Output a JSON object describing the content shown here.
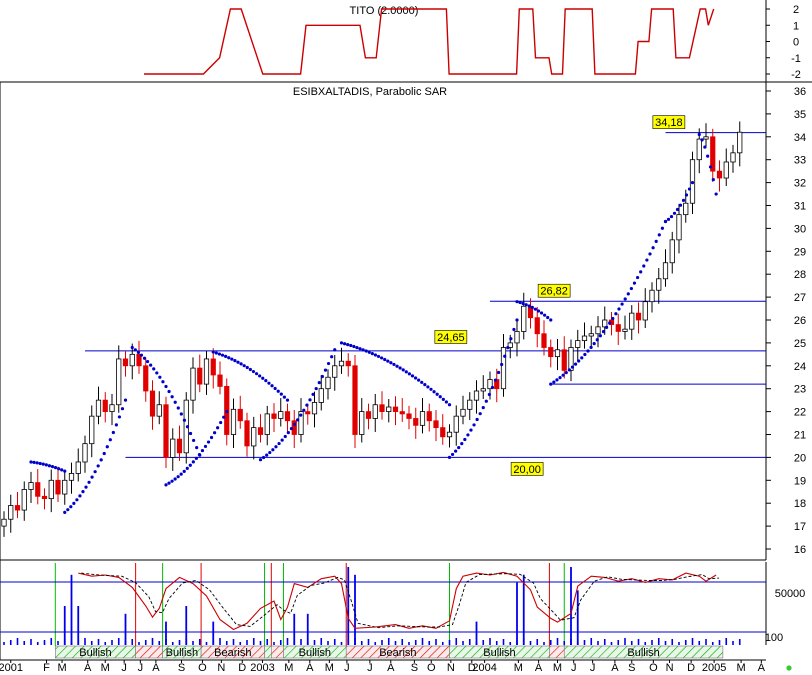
{
  "indicator_title": "TITO (2.0000)",
  "main_title": "ESIBXALTADIS, Parabolic SAR",
  "colors": {
    "price_up": "#000000",
    "price_down": "#e00000",
    "sar": "#0000cc",
    "hline": "#0000cc",
    "tito": "#cc0000",
    "label_bg": "#ffff00",
    "bull": "#00bb00",
    "bear": "#e00000",
    "volume": "#0000ee"
  },
  "chart_data": [
    {
      "type": "line",
      "name": "tito",
      "title": "TITO (2.0000)",
      "ylim": [
        -2.2,
        2.2
      ],
      "y_ticks": [
        "2",
        "1",
        "0",
        "-1",
        "-2"
      ],
      "x": [
        0,
        11,
        14,
        16,
        18,
        21,
        22,
        29,
        30,
        40,
        41,
        43,
        44,
        56,
        56.5,
        58,
        58.5,
        69,
        69.5,
        70.2,
        72,
        72.5,
        75,
        75.5,
        77.5,
        78,
        83,
        83.5,
        91,
        91.5,
        93.5,
        94,
        98,
        98.5,
        101,
        103,
        104,
        104.5,
        105.5
      ],
      "y": [
        -2,
        -2,
        -1,
        2,
        2,
        -1,
        -2,
        -2,
        1,
        1,
        -1,
        -1,
        2,
        2,
        -2,
        -2,
        -2,
        -2,
        2,
        2,
        2,
        -1,
        -1,
        -2,
        -2,
        2,
        2,
        -2,
        -2,
        0,
        0,
        2,
        2,
        -1,
        -1,
        2,
        2,
        1,
        2
      ]
    },
    {
      "type": "candlestick",
      "name": "price",
      "title": "ESIBXALTADIS, Parabolic SAR",
      "ylim": [
        16.6,
        36.4
      ],
      "y_ticks": [
        "36",
        "35",
        "34",
        "33",
        "32",
        "31",
        "30",
        "29",
        "28",
        "27",
        "26",
        "25",
        "24",
        "23",
        "22",
        "21",
        "20",
        "19",
        "18",
        "17",
        "16"
      ],
      "x_ticks": [
        {
          "label": "2001",
          "x": 1
        },
        {
          "label": "F",
          "x": 6.3
        },
        {
          "label": "M",
          "x": 8.6
        },
        {
          "label": "A",
          "x": 12.4
        },
        {
          "label": "M",
          "x": 15
        },
        {
          "label": "J",
          "x": 17.8
        },
        {
          "label": "J",
          "x": 20.2
        },
        {
          "label": "A",
          "x": 22.5
        },
        {
          "label": "S",
          "x": 26.3
        },
        {
          "label": "O",
          "x": 29.4
        },
        {
          "label": "N",
          "x": 32.2
        },
        {
          "label": "D",
          "x": 35.3
        },
        {
          "label": "2003",
          "x": 38.3
        },
        {
          "label": "M",
          "x": 42.2
        },
        {
          "label": "A",
          "x": 45.3
        },
        {
          "label": "M",
          "x": 48.2
        },
        {
          "label": "J",
          "x": 50.8
        },
        {
          "label": "J",
          "x": 54.2
        },
        {
          "label": "A",
          "x": 57.3
        },
        {
          "label": "S",
          "x": 60.8
        },
        {
          "label": "O",
          "x": 63.3
        },
        {
          "label": "N",
          "x": 66.2
        },
        {
          "label": "D",
          "x": 69.3
        },
        {
          "label": "2004",
          "x": 71.2
        },
        {
          "label": "M",
          "x": 76.2
        },
        {
          "label": "A",
          "x": 79.2
        },
        {
          "label": "M",
          "x": 82
        },
        {
          "label": "J",
          "x": 84.4
        },
        {
          "label": "J",
          "x": 87.2
        },
        {
          "label": "A",
          "x": 90.5
        },
        {
          "label": "S",
          "x": 93
        },
        {
          "label": "O",
          "x": 96.2
        },
        {
          "label": "N",
          "x": 98.6
        },
        {
          "label": "D",
          "x": 101.8
        },
        {
          "label": "2005",
          "x": 105.2
        },
        {
          "label": "M",
          "x": 109.2
        },
        {
          "label": "A",
          "x": 112.2
        }
      ],
      "close": [
        17.3,
        17.9,
        17.7,
        18.6,
        18.9,
        18.3,
        18.2,
        19.0,
        18.4,
        19.0,
        19.3,
        19.8,
        20.6,
        21.8,
        22.5,
        22.0,
        22.3,
        24.3,
        24.0,
        24.5,
        24.0,
        22.9,
        21.8,
        22.3,
        20.0,
        20.8,
        20.2,
        22.5,
        23.9,
        23.2,
        24.3,
        23.6,
        23.1,
        21.0,
        22.1,
        21.6,
        20.5,
        21.3,
        21.0,
        21.9,
        21.7,
        22.0,
        21.6,
        21.0,
        22.0,
        21.9,
        22.4,
        23.0,
        23.5,
        24.0,
        24.2,
        24.0,
        21.0,
        22.0,
        21.7,
        22.3,
        22.0,
        22.2,
        22.0,
        21.9,
        21.7,
        21.4,
        22.0,
        21.6,
        21.3,
        20.9,
        21.1,
        21.8,
        22.1,
        22.5,
        22.9,
        23.0,
        23.4,
        23.0,
        24.8,
        25.0,
        25.5,
        26.6,
        26.1,
        25.4,
        24.8,
        24.4,
        24.7,
        23.8,
        24.8,
        25.1,
        25.3,
        25.4,
        25.7,
        26.0,
        25.8,
        25.5,
        25.6,
        26.3,
        26.0,
        26.8,
        27.3,
        27.8,
        28.5,
        29.5,
        30.6,
        31.1,
        33.0,
        33.9,
        34.0,
        32.5,
        32.2,
        32.9,
        33.3,
        34.2
      ],
      "sar_segments": [
        {
          "x0": 4,
          "x1": 9,
          "y0": 19.8,
          "y1": 19.4
        },
        {
          "x0": 9,
          "x1": 18,
          "y0": 17.6,
          "y1": 22.5
        },
        {
          "x0": 19,
          "x1": 29,
          "y0": 24.8,
          "y1": 20.1
        },
        {
          "x0": 24,
          "x1": 33,
          "y0": 18.8,
          "y1": 22.0
        },
        {
          "x0": 31,
          "x1": 42,
          "y0": 24.6,
          "y1": 22.5
        },
        {
          "x0": 38,
          "x1": 49,
          "y0": 19.9,
          "y1": 24.7
        },
        {
          "x0": 50,
          "x1": 66,
          "y0": 25.0,
          "y1": 22.3
        },
        {
          "x0": 66,
          "x1": 76,
          "y0": 20.0,
          "y1": 26.0
        },
        {
          "x0": 76,
          "x1": 81,
          "y0": 26.8,
          "y1": 26.0
        },
        {
          "x0": 81,
          "x1": 98,
          "y0": 23.2,
          "y1": 30.3
        },
        {
          "x0": 98,
          "x1": 102,
          "y0": 30.3,
          "y1": 32.0
        },
        {
          "x0": 103,
          "x1": 105.5,
          "y0": 34.1,
          "y1": 31.5
        }
      ],
      "levels": [
        {
          "value": 34.18,
          "label": "34,18",
          "x_start": 98
        },
        {
          "value": 26.82,
          "label": "26,82",
          "x_start": 72
        },
        {
          "value": 24.65,
          "label": "24,65",
          "x_start": 12
        },
        {
          "value": 23.2,
          "label": "",
          "x_start": 81
        },
        {
          "value": 20.0,
          "label": "20,00",
          "x_start": 18
        }
      ]
    },
    {
      "type": "line",
      "name": "oscillator",
      "ylim": [
        0,
        100
      ],
      "y_tick": "50000",
      "osc_points": [
        [
          11,
          95
        ],
        [
          13,
          90
        ],
        [
          15,
          92
        ],
        [
          17,
          88
        ],
        [
          19,
          72
        ],
        [
          21,
          42
        ],
        [
          22,
          24
        ],
        [
          23,
          38
        ],
        [
          24,
          70
        ],
        [
          26,
          88
        ],
        [
          28,
          78
        ],
        [
          30,
          58
        ],
        [
          32,
          20
        ],
        [
          34,
          4
        ],
        [
          36,
          14
        ],
        [
          38,
          38
        ],
        [
          40,
          50
        ],
        [
          41,
          20
        ],
        [
          42,
          40
        ],
        [
          43,
          78
        ],
        [
          45,
          72
        ],
        [
          47,
          86
        ],
        [
          49,
          90
        ],
        [
          50,
          78
        ],
        [
          51,
          22
        ],
        [
          52,
          6
        ],
        [
          55,
          8
        ],
        [
          58,
          12
        ],
        [
          60,
          6
        ],
        [
          62,
          10
        ],
        [
          64,
          6
        ],
        [
          66,
          18
        ],
        [
          67,
          70
        ],
        [
          68,
          90
        ],
        [
          70,
          95
        ],
        [
          72,
          92
        ],
        [
          74,
          96
        ],
        [
          76,
          90
        ],
        [
          78,
          68
        ],
        [
          79,
          40
        ],
        [
          81,
          22
        ],
        [
          82,
          16
        ],
        [
          84,
          30
        ],
        [
          85,
          74
        ],
        [
          87,
          90
        ],
        [
          89,
          88
        ],
        [
          91,
          82
        ],
        [
          93,
          86
        ],
        [
          95,
          80
        ],
        [
          97,
          86
        ],
        [
          99,
          84
        ],
        [
          101,
          95
        ],
        [
          103,
          90
        ],
        [
          104,
          82
        ],
        [
          105.5,
          92
        ]
      ],
      "signal_lines": [
        {
          "x": 7.6,
          "kind": "bull"
        },
        {
          "x": 19.5,
          "kind": "bear"
        },
        {
          "x": 23.5,
          "kind": "bull"
        },
        {
          "x": 29.2,
          "kind": "bear"
        },
        {
          "x": 38.6,
          "kind": "bull"
        },
        {
          "x": 39.6,
          "kind": "bear"
        },
        {
          "x": 41.4,
          "kind": "bull"
        },
        {
          "x": 50.7,
          "kind": "bear"
        },
        {
          "x": 66.0,
          "kind": "bull"
        },
        {
          "x": 80.8,
          "kind": "bear"
        },
        {
          "x": 83.0,
          "kind": "bull"
        }
      ],
      "ref_line": 90
    },
    {
      "type": "bar",
      "name": "volume",
      "y_tick": "100",
      "spikes": [
        [
          9,
          0.5
        ],
        [
          10,
          0.9
        ],
        [
          11,
          0.5
        ],
        [
          18,
          0.4
        ],
        [
          24,
          0.3
        ],
        [
          27,
          0.5
        ],
        [
          31,
          0.3
        ],
        [
          43,
          0.4
        ],
        [
          45,
          0.4
        ],
        [
          51,
          1.0
        ],
        [
          52,
          0.9
        ],
        [
          70,
          0.3
        ],
        [
          76,
          0.8
        ],
        [
          77,
          0.9
        ],
        [
          84,
          1.0
        ],
        [
          85,
          0.7
        ]
      ]
    }
  ],
  "bands": [
    {
      "x0": 7.6,
      "x1": 19.5,
      "kind": "bull",
      "label": "Bullish"
    },
    {
      "x0": 19.5,
      "x1": 23.5,
      "kind": "bear",
      "label": ""
    },
    {
      "x0": 23.5,
      "x1": 29.2,
      "kind": "bull",
      "label": "Bullish"
    },
    {
      "x0": 29.2,
      "x1": 38.6,
      "kind": "bear",
      "label": "Bearish"
    },
    {
      "x0": 38.6,
      "x1": 39.6,
      "kind": "bull",
      "label": ""
    },
    {
      "x0": 39.6,
      "x1": 41.4,
      "kind": "bear",
      "label": ""
    },
    {
      "x0": 41.4,
      "x1": 50.7,
      "kind": "bull",
      "label": "Bullish"
    },
    {
      "x0": 50.7,
      "x1": 66.0,
      "kind": "bear",
      "label": "Bearish"
    },
    {
      "x0": 66.0,
      "x1": 80.8,
      "kind": "bull",
      "label": "Bullish"
    },
    {
      "x0": 80.8,
      "x1": 83.0,
      "kind": "bear",
      "label": ""
    },
    {
      "x0": 83.0,
      "x1": 106.5,
      "kind": "bull",
      "label": "Bullish"
    }
  ]
}
